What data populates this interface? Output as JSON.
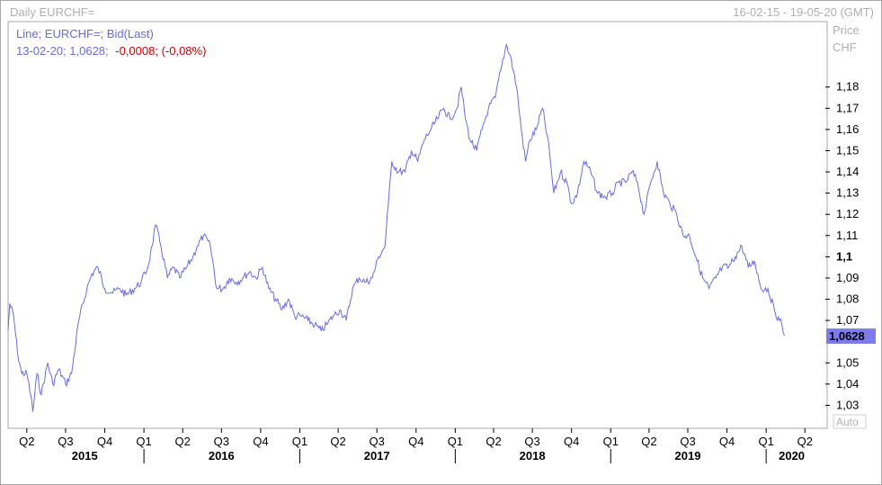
{
  "header": {
    "title": "Daily EURCHF=",
    "range": "16-02-15 - 19-05-20 (GMT)"
  },
  "legend": {
    "line1": "Line; EURCHF=; Bid(Last)",
    "line2_prefix": "13-02-20; 1,0628;",
    "line2_change": "-0,0008; (-0,08%)"
  },
  "axis_labels": {
    "price": "Price",
    "currency": "CHF",
    "auto": "Auto"
  },
  "colors": {
    "series": "#6b6be6",
    "legend_text": "#6b6be6",
    "change_text": "#d00000",
    "last_value_bg": "#7b7bef",
    "grid": "#d8d8d8",
    "axis": "#000000"
  },
  "chart_data": {
    "type": "line",
    "title": "Daily EURCHF=",
    "ylim": [
      1.02,
      1.21
    ],
    "last_value": "1,0628",
    "y_ticks": [
      {
        "v": 1.18,
        "label": "1,18"
      },
      {
        "v": 1.17,
        "label": "1,17"
      },
      {
        "v": 1.16,
        "label": "1,16"
      },
      {
        "v": 1.15,
        "label": "1,15"
      },
      {
        "v": 1.14,
        "label": "1,14"
      },
      {
        "v": 1.13,
        "label": "1,13"
      },
      {
        "v": 1.12,
        "label": "1,12"
      },
      {
        "v": 1.11,
        "label": "1,11"
      },
      {
        "v": 1.1,
        "label": "1,1",
        "bold": true
      },
      {
        "v": 1.09,
        "label": "1,09"
      },
      {
        "v": 1.08,
        "label": "1,08"
      },
      {
        "v": 1.07,
        "label": "1,07"
      },
      {
        "v": 1.05,
        "label": "1,05"
      },
      {
        "v": 1.04,
        "label": "1,04"
      },
      {
        "v": 1.03,
        "label": "1,03"
      }
    ],
    "x_start": "2015-02-16",
    "x_end": "2020-05-19",
    "quarter_ticks": [
      {
        "date": "2015-04-01",
        "label": "Q2"
      },
      {
        "date": "2015-07-01",
        "label": "Q3"
      },
      {
        "date": "2015-10-01",
        "label": "Q4"
      },
      {
        "date": "2016-01-01",
        "label": "Q1"
      },
      {
        "date": "2016-04-01",
        "label": "Q2"
      },
      {
        "date": "2016-07-01",
        "label": "Q3"
      },
      {
        "date": "2016-10-01",
        "label": "Q4"
      },
      {
        "date": "2017-01-01",
        "label": "Q1"
      },
      {
        "date": "2017-04-01",
        "label": "Q2"
      },
      {
        "date": "2017-07-01",
        "label": "Q3"
      },
      {
        "date": "2017-10-01",
        "label": "Q4"
      },
      {
        "date": "2018-01-01",
        "label": "Q1"
      },
      {
        "date": "2018-04-01",
        "label": "Q2"
      },
      {
        "date": "2018-07-01",
        "label": "Q3"
      },
      {
        "date": "2018-10-01",
        "label": "Q4"
      },
      {
        "date": "2019-01-01",
        "label": "Q1"
      },
      {
        "date": "2019-04-01",
        "label": "Q2"
      },
      {
        "date": "2019-07-01",
        "label": "Q3"
      },
      {
        "date": "2019-10-01",
        "label": "Q4"
      },
      {
        "date": "2020-01-01",
        "label": "Q1"
      },
      {
        "date": "2020-04-01",
        "label": "Q2"
      }
    ],
    "years": [
      {
        "label": "2015",
        "center": "2015-08-15",
        "sep": "2016-01-01"
      },
      {
        "label": "2016",
        "center": "2016-07-01",
        "sep": "2017-01-01"
      },
      {
        "label": "2017",
        "center": "2017-07-01",
        "sep": "2018-01-01"
      },
      {
        "label": "2018",
        "center": "2018-07-01",
        "sep": "2019-01-01"
      },
      {
        "label": "2019",
        "center": "2019-07-01",
        "sep": "2020-01-01"
      },
      {
        "label": "2020",
        "center": "2020-03-01"
      }
    ],
    "series": [
      {
        "points": [
          [
            "2015-02-16",
            1.065
          ],
          [
            "2015-02-20",
            1.078
          ],
          [
            "2015-03-01",
            1.072
          ],
          [
            "2015-03-10",
            1.055
          ],
          [
            "2015-03-20",
            1.045
          ],
          [
            "2015-04-01",
            1.045
          ],
          [
            "2015-04-10",
            1.035
          ],
          [
            "2015-04-15",
            1.027
          ],
          [
            "2015-04-25",
            1.045
          ],
          [
            "2015-05-05",
            1.035
          ],
          [
            "2015-05-20",
            1.05
          ],
          [
            "2015-06-01",
            1.04
          ],
          [
            "2015-06-15",
            1.047
          ],
          [
            "2015-07-01",
            1.04
          ],
          [
            "2015-07-15",
            1.045
          ],
          [
            "2015-08-01",
            1.07
          ],
          [
            "2015-08-20",
            1.085
          ],
          [
            "2015-09-01",
            1.092
          ],
          [
            "2015-09-15",
            1.095
          ],
          [
            "2015-10-01",
            1.085
          ],
          [
            "2015-10-20",
            1.083
          ],
          [
            "2015-11-05",
            1.085
          ],
          [
            "2015-11-20",
            1.082
          ],
          [
            "2015-12-10",
            1.085
          ],
          [
            "2015-12-25",
            1.088
          ],
          [
            "2016-01-10",
            1.095
          ],
          [
            "2016-01-20",
            1.105
          ],
          [
            "2016-01-28",
            1.115
          ],
          [
            "2016-02-10",
            1.105
          ],
          [
            "2016-02-25",
            1.09
          ],
          [
            "2016-03-10",
            1.095
          ],
          [
            "2016-03-25",
            1.09
          ],
          [
            "2016-04-10",
            1.095
          ],
          [
            "2016-04-25",
            1.1
          ],
          [
            "2016-05-05",
            1.105
          ],
          [
            "2016-05-20",
            1.11
          ],
          [
            "2016-06-05",
            1.105
          ],
          [
            "2016-06-20",
            1.085
          ],
          [
            "2016-07-05",
            1.085
          ],
          [
            "2016-07-20",
            1.09
          ],
          [
            "2016-08-05",
            1.088
          ],
          [
            "2016-08-20",
            1.09
          ],
          [
            "2016-09-05",
            1.093
          ],
          [
            "2016-09-20",
            1.09
          ],
          [
            "2016-10-05",
            1.095
          ],
          [
            "2016-10-20",
            1.085
          ],
          [
            "2016-11-05",
            1.08
          ],
          [
            "2016-11-20",
            1.075
          ],
          [
            "2016-12-05",
            1.08
          ],
          [
            "2016-12-20",
            1.072
          ],
          [
            "2017-01-05",
            1.072
          ],
          [
            "2017-01-20",
            1.07
          ],
          [
            "2017-02-05",
            1.068
          ],
          [
            "2017-02-20",
            1.065
          ],
          [
            "2017-03-05",
            1.068
          ],
          [
            "2017-03-20",
            1.072
          ],
          [
            "2017-04-05",
            1.075
          ],
          [
            "2017-04-20",
            1.07
          ],
          [
            "2017-05-05",
            1.085
          ],
          [
            "2017-05-20",
            1.09
          ],
          [
            "2017-06-05",
            1.088
          ],
          [
            "2017-06-20",
            1.09
          ],
          [
            "2017-07-05",
            1.1
          ],
          [
            "2017-07-20",
            1.105
          ],
          [
            "2017-07-28",
            1.125
          ],
          [
            "2017-08-05",
            1.145
          ],
          [
            "2017-08-20",
            1.14
          ],
          [
            "2017-09-05",
            1.14
          ],
          [
            "2017-09-20",
            1.15
          ],
          [
            "2017-10-05",
            1.145
          ],
          [
            "2017-10-20",
            1.155
          ],
          [
            "2017-11-05",
            1.16
          ],
          [
            "2017-11-20",
            1.165
          ],
          [
            "2017-12-05",
            1.17
          ],
          [
            "2017-12-20",
            1.165
          ],
          [
            "2018-01-05",
            1.17
          ],
          [
            "2018-01-15",
            1.18
          ],
          [
            "2018-01-25",
            1.165
          ],
          [
            "2018-02-05",
            1.155
          ],
          [
            "2018-02-20",
            1.15
          ],
          [
            "2018-03-05",
            1.16
          ],
          [
            "2018-03-20",
            1.17
          ],
          [
            "2018-04-05",
            1.175
          ],
          [
            "2018-04-20",
            1.19
          ],
          [
            "2018-05-01",
            1.2
          ],
          [
            "2018-05-10",
            1.195
          ],
          [
            "2018-05-25",
            1.18
          ],
          [
            "2018-06-05",
            1.16
          ],
          [
            "2018-06-15",
            1.145
          ],
          [
            "2018-06-25",
            1.155
          ],
          [
            "2018-07-10",
            1.16
          ],
          [
            "2018-07-25",
            1.17
          ],
          [
            "2018-08-10",
            1.15
          ],
          [
            "2018-08-20",
            1.13
          ],
          [
            "2018-09-05",
            1.14
          ],
          [
            "2018-09-20",
            1.135
          ],
          [
            "2018-10-01",
            1.125
          ],
          [
            "2018-10-15",
            1.13
          ],
          [
            "2018-10-30",
            1.145
          ],
          [
            "2018-11-15",
            1.14
          ],
          [
            "2018-12-01",
            1.13
          ],
          [
            "2018-12-20",
            1.128
          ],
          [
            "2019-01-05",
            1.13
          ],
          [
            "2019-01-20",
            1.135
          ],
          [
            "2019-02-05",
            1.135
          ],
          [
            "2019-02-20",
            1.14
          ],
          [
            "2019-03-05",
            1.135
          ],
          [
            "2019-03-20",
            1.12
          ],
          [
            "2019-04-05",
            1.135
          ],
          [
            "2019-04-20",
            1.145
          ],
          [
            "2019-05-05",
            1.13
          ],
          [
            "2019-05-20",
            1.125
          ],
          [
            "2019-06-05",
            1.12
          ],
          [
            "2019-06-20",
            1.11
          ],
          [
            "2019-07-05",
            1.11
          ],
          [
            "2019-07-20",
            1.1
          ],
          [
            "2019-08-05",
            1.09
          ],
          [
            "2019-08-20",
            1.085
          ],
          [
            "2019-09-05",
            1.09
          ],
          [
            "2019-09-20",
            1.095
          ],
          [
            "2019-10-05",
            1.095
          ],
          [
            "2019-10-20",
            1.1
          ],
          [
            "2019-11-05",
            1.105
          ],
          [
            "2019-11-20",
            1.095
          ],
          [
            "2019-12-05",
            1.098
          ],
          [
            "2019-12-20",
            1.085
          ],
          [
            "2020-01-05",
            1.085
          ],
          [
            "2020-01-20",
            1.075
          ],
          [
            "2020-02-01",
            1.07
          ],
          [
            "2020-02-07",
            1.068
          ],
          [
            "2020-02-13",
            1.0628
          ]
        ]
      }
    ]
  }
}
